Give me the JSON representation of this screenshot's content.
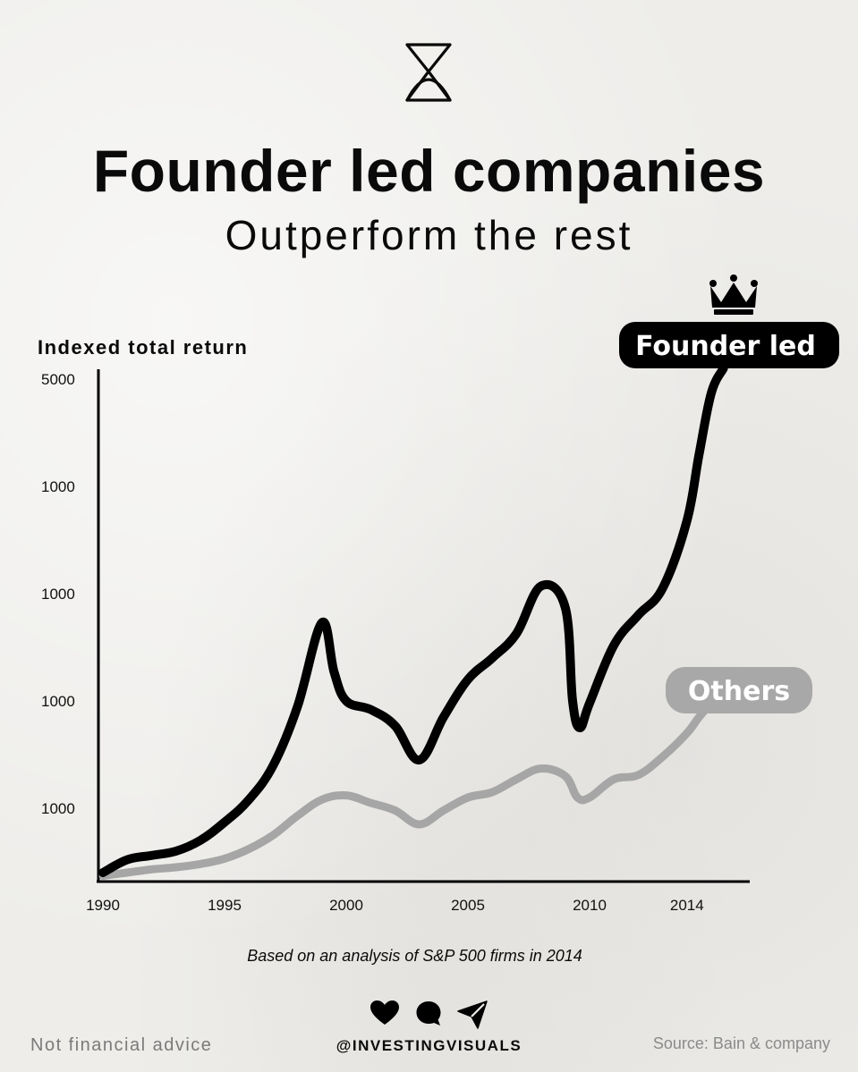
{
  "header": {
    "logo_icon": "hourglass-logo-icon",
    "title": "Founder led companies",
    "subtitle": "Outperform the rest"
  },
  "colors": {
    "founder_line": "#000000",
    "others_line": "#a6a6a6",
    "badge_founder": "#000000",
    "badge_others": "#a8a8a8",
    "background": "#eeedea"
  },
  "chart_data": {
    "type": "line",
    "title": "Founder led companies",
    "subtitle": "Outperform the rest",
    "ylabel": "Indexed total return",
    "xlabel": "",
    "y_tick_labels": [
      "5000",
      "1000",
      "1000",
      "1000",
      "1000"
    ],
    "x_ticks": [
      1990,
      1995,
      2000,
      2005,
      2010,
      2014
    ],
    "x_tick_labels": [
      "1990",
      "1995",
      "2000",
      "2005",
      "2010",
      "2014"
    ],
    "xlim": [
      1990,
      2016.5
    ],
    "ylim_index": [
      0,
      4.7
    ],
    "grid": false,
    "legend": "direct labels at line ends",
    "annotation_icon": "crown-icon",
    "note": "Values are given on the chart's tick-position index (0 = baseline, 1–4 = the four ticks labelled 1000, 4.7 = tick labelled 5000); the printed tick labels are not monotonic.",
    "series": [
      {
        "name": "Founder led",
        "points": [
          [
            1990,
            0.05
          ],
          [
            1991,
            0.17
          ],
          [
            1992,
            0.21
          ],
          [
            1993,
            0.25
          ],
          [
            1994,
            0.35
          ],
          [
            1995,
            0.52
          ],
          [
            1996,
            0.73
          ],
          [
            1997,
            1.05
          ],
          [
            1998,
            1.6
          ],
          [
            1999,
            2.38
          ],
          [
            1999.5,
            1.92
          ],
          [
            2000,
            1.65
          ],
          [
            2001,
            1.57
          ],
          [
            2002,
            1.42
          ],
          [
            2003,
            1.1
          ],
          [
            2004,
            1.5
          ],
          [
            2005,
            1.85
          ],
          [
            2006,
            2.05
          ],
          [
            2007,
            2.28
          ],
          [
            2008,
            2.72
          ],
          [
            2009,
            2.52
          ],
          [
            2009.3,
            1.65
          ],
          [
            2009.6,
            1.4
          ],
          [
            2010,
            1.63
          ],
          [
            2011,
            2.17
          ],
          [
            2012,
            2.45
          ],
          [
            2013,
            2.7
          ],
          [
            2014,
            3.33
          ],
          [
            2014.5,
            3.95
          ],
          [
            2015,
            4.52
          ],
          [
            2015.5,
            4.75
          ]
        ]
      },
      {
        "name": "Others",
        "points": [
          [
            1990,
            0.02
          ],
          [
            1991,
            0.05
          ],
          [
            1992,
            0.08
          ],
          [
            1993,
            0.1
          ],
          [
            1994,
            0.13
          ],
          [
            1995,
            0.18
          ],
          [
            1996,
            0.27
          ],
          [
            1997,
            0.4
          ],
          [
            1998,
            0.58
          ],
          [
            1999,
            0.73
          ],
          [
            2000,
            0.77
          ],
          [
            2001,
            0.7
          ],
          [
            2002,
            0.63
          ],
          [
            2003,
            0.5
          ],
          [
            2004,
            0.63
          ],
          [
            2005,
            0.75
          ],
          [
            2006,
            0.8
          ],
          [
            2007,
            0.92
          ],
          [
            2008,
            1.02
          ],
          [
            2009,
            0.95
          ],
          [
            2009.5,
            0.75
          ],
          [
            2010,
            0.75
          ],
          [
            2011,
            0.92
          ],
          [
            2012,
            0.96
          ],
          [
            2013,
            1.13
          ],
          [
            2014,
            1.35
          ],
          [
            2014.5,
            1.5
          ],
          [
            2015,
            1.62
          ],
          [
            2015.5,
            1.65
          ]
        ]
      }
    ],
    "annotations": [
      "Founder led",
      "Others"
    ]
  },
  "footnote": "Based on an analysis of S&P 500 firms in 2014",
  "social_icons": [
    "heart-icon",
    "comment-icon",
    "send-icon"
  ],
  "footer": {
    "disclaimer": "Not financial advice",
    "handle": "@INVESTINGVISUALS",
    "source": "Source: Bain & company"
  }
}
